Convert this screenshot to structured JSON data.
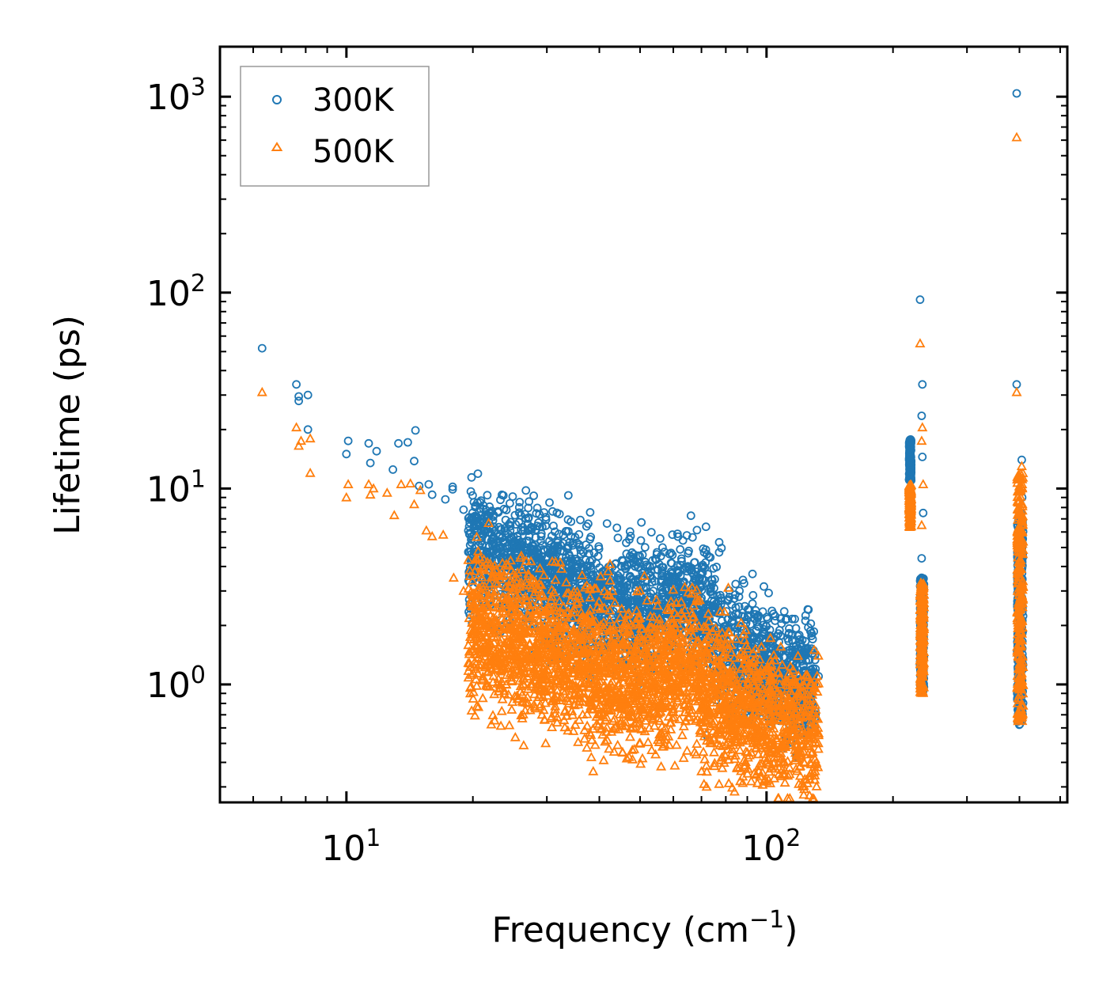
{
  "chart_data": {
    "type": "scatter",
    "title": "",
    "xlabel": "Frequency (cm",
    "xlabel_exp": "−1",
    "xlabel_tail": ")",
    "ylabel": "Lifetime (ps)",
    "xscale": "log",
    "yscale": "log",
    "xlim": [
      5.0,
      520
    ],
    "ylim": [
      0.25,
      1800
    ],
    "x_ticks": [
      {
        "value": 10,
        "base": "10",
        "exp": "1"
      },
      {
        "value": 100,
        "base": "10",
        "exp": "2"
      }
    ],
    "y_ticks": [
      {
        "value": 1,
        "base": "10",
        "exp": "0"
      },
      {
        "value": 10,
        "base": "10",
        "exp": "1"
      },
      {
        "value": 100,
        "base": "10",
        "exp": "2"
      },
      {
        "value": 1000,
        "base": "10",
        "exp": "3"
      }
    ],
    "legend": {
      "position": "top-left"
    },
    "series": [
      {
        "name": "300K",
        "marker": "circle",
        "color": "#1f77b4",
        "points": [
          [
            6.3,
            52
          ],
          [
            7.6,
            34
          ],
          [
            7.7,
            28
          ],
          [
            7.7,
            29.5
          ],
          [
            8.1,
            20
          ],
          [
            8.1,
            30
          ],
          [
            10.0,
            15
          ],
          [
            10.1,
            17.5
          ],
          [
            11.3,
            17
          ],
          [
            11.4,
            13.5
          ],
          [
            11.8,
            15.5
          ],
          [
            12.9,
            12.5
          ],
          [
            13.3,
            17
          ],
          [
            14.0,
            17.2
          ],
          [
            14.5,
            13.8
          ],
          [
            14.6,
            19.8
          ],
          [
            14.9,
            10.3
          ],
          [
            15.7,
            10.5
          ],
          [
            16.0,
            9.3
          ],
          [
            17.2,
            8.8
          ],
          [
            17.9,
            9.9
          ],
          [
            17.9,
            10.2
          ],
          [
            19.0,
            7.8
          ],
          [
            19.6,
            6.4
          ],
          [
            21.0,
            5.6
          ],
          [
            22.3,
            5.5
          ],
          [
            25.6,
            5.0
          ],
          [
            26.6,
            4.8
          ],
          [
            28.5,
            4.3
          ],
          [
            31.0,
            4.1
          ],
          [
            41.0,
            3.5
          ],
          [
            65.0,
            3.2
          ],
          [
            69.0,
            3.5
          ],
          [
            75.0,
            3.1
          ],
          [
            86.0,
            2.8
          ],
          [
            91.0,
            2.4
          ],
          [
            120.0,
            1.6
          ],
          [
            125.0,
            1.5
          ],
          [
            133.0,
            1.1
          ],
          [
            72.0,
            0.55
          ],
          [
            220.0,
            17.5
          ],
          [
            220.0,
            15.5
          ],
          [
            220.0,
            13.0
          ],
          [
            221.0,
            11.0
          ],
          [
            232.0,
            92
          ],
          [
            235.0,
            34
          ],
          [
            234.0,
            23.5
          ],
          [
            235.0,
            14.5
          ],
          [
            236.0,
            7.5
          ],
          [
            234.0,
            4.4
          ],
          [
            234.0,
            3.5
          ],
          [
            235.0,
            2.0
          ],
          [
            236.0,
            1.2
          ],
          [
            394.0,
            1040
          ],
          [
            394.0,
            34
          ],
          [
            405.0,
            14
          ],
          [
            406.0,
            9
          ],
          [
            404.0,
            7.5
          ],
          [
            396.0,
            4.3
          ],
          [
            403.0,
            4.4
          ],
          [
            397.0,
            2.5
          ],
          [
            398.0,
            1.5
          ],
          [
            399.0,
            0.9
          ]
        ]
      },
      {
        "name": "500K",
        "marker": "triangle",
        "color": "#ff7f0e",
        "points": [
          [
            6.3,
            31
          ],
          [
            7.6,
            20.5
          ],
          [
            7.7,
            16.5
          ],
          [
            7.8,
            17.5
          ],
          [
            8.2,
            18
          ],
          [
            8.2,
            12
          ],
          [
            10.0,
            9.0
          ],
          [
            10.1,
            10.5
          ],
          [
            11.3,
            10.5
          ],
          [
            11.4,
            9.3
          ],
          [
            11.6,
            10.0
          ],
          [
            12.5,
            9.5
          ],
          [
            13.0,
            7.3
          ],
          [
            13.5,
            10.5
          ],
          [
            14.2,
            10.6
          ],
          [
            14.5,
            8.3
          ],
          [
            15.0,
            9.8
          ],
          [
            15.5,
            6.1
          ],
          [
            16.0,
            5.7
          ],
          [
            17.0,
            5.8
          ],
          [
            18.0,
            3.5
          ],
          [
            19.0,
            3.0
          ],
          [
            20.0,
            2.5
          ],
          [
            21.0,
            2.0
          ],
          [
            22.0,
            1.3
          ],
          [
            24.0,
            1.0
          ],
          [
            26.0,
            0.98
          ],
          [
            28.0,
            1.2
          ],
          [
            32.0,
            1.2
          ],
          [
            36.0,
            1.1
          ],
          [
            40.0,
            0.9
          ],
          [
            48.0,
            0.68
          ],
          [
            54.0,
            0.72
          ],
          [
            56.0,
            0.8
          ],
          [
            63.0,
            0.55
          ],
          [
            70.0,
            0.36
          ],
          [
            71.0,
            0.31
          ],
          [
            72.0,
            0.3
          ],
          [
            75.0,
            0.45
          ],
          [
            85.0,
            0.55
          ],
          [
            93.0,
            0.5
          ],
          [
            110.0,
            0.4
          ],
          [
            120.0,
            0.38
          ],
          [
            130.0,
            0.38
          ],
          [
            133.0,
            0.55
          ],
          [
            220.0,
            10.0
          ],
          [
            220.0,
            8.0
          ],
          [
            221.0,
            6.4
          ],
          [
            232.0,
            55
          ],
          [
            235.0,
            20.5
          ],
          [
            234.0,
            17.5
          ],
          [
            236.0,
            10.5
          ],
          [
            234.0,
            6.5
          ],
          [
            235.0,
            3.0
          ],
          [
            236.0,
            1.2
          ],
          [
            394.0,
            620
          ],
          [
            394.0,
            31
          ],
          [
            405.0,
            13
          ],
          [
            406.0,
            10.5
          ],
          [
            404.0,
            7
          ],
          [
            398.0,
            4.2
          ],
          [
            403.0,
            4.3
          ],
          [
            397.0,
            2.0
          ],
          [
            396.0,
            0.8
          ],
          [
            397.0,
            0.65
          ]
        ]
      }
    ],
    "clusters": [
      {
        "series": 0,
        "xmin": 19.5,
        "xmax": 131,
        "ycenter_start": 5.0,
        "ycenter_end": 1.0,
        "spread": 0.32,
        "count": 2600,
        "bump": 0.35
      },
      {
        "series": 1,
        "xmin": 19.5,
        "xmax": 133,
        "ycenter_start": 2.0,
        "ycenter_end": 0.55,
        "spread": 0.38,
        "count": 2800,
        "bump": 0.25
      },
      {
        "series": 0,
        "xmin": 218.5,
        "xmax": 221,
        "ymin": 11,
        "ymax": 17.8,
        "count": 160
      },
      {
        "series": 1,
        "xmin": 218.5,
        "xmax": 221,
        "ymin": 6.3,
        "ymax": 10.5,
        "count": 160
      },
      {
        "series": 0,
        "xmin": 232,
        "xmax": 237,
        "ymin": 0.9,
        "ymax": 3.5,
        "count": 200
      },
      {
        "series": 1,
        "xmin": 232,
        "xmax": 237,
        "ymin": 0.9,
        "ymax": 3.3,
        "count": 200
      },
      {
        "series": 0,
        "xmin": 395,
        "xmax": 408,
        "ymin": 0.62,
        "ymax": 7,
        "count": 260
      },
      {
        "series": 1,
        "xmin": 395,
        "xmax": 408,
        "ymin": 0.65,
        "ymax": 12,
        "count": 260
      }
    ]
  }
}
